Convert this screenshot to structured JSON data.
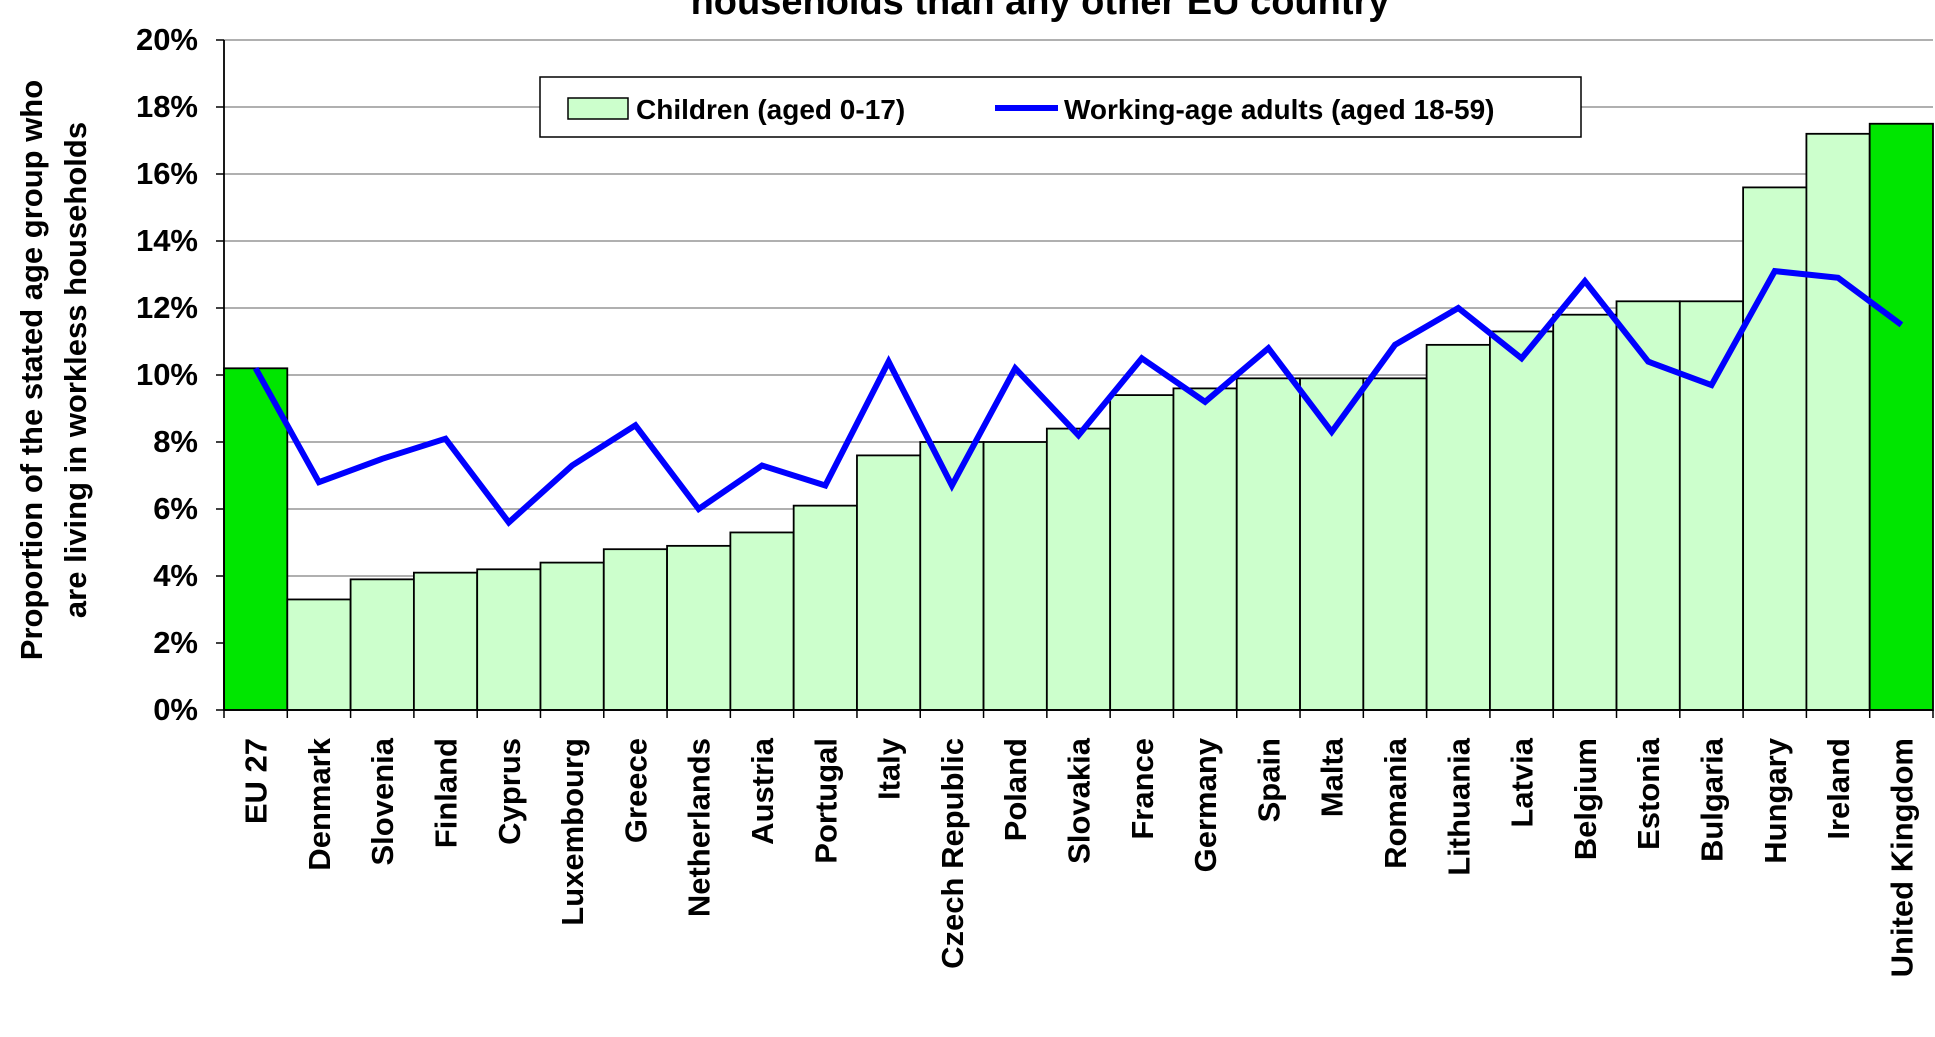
{
  "chart_data": {
    "type": "bar",
    "title": "households than any other EU country",
    "ylabel_lines": [
      "Proportion of the stated age group who",
      "are living in workless households"
    ],
    "xlabel": "",
    "ylim": [
      0,
      20
    ],
    "yticks": [
      "0%",
      "2%",
      "4%",
      "6%",
      "8%",
      "10%",
      "12%",
      "14%",
      "16%",
      "18%",
      "20%"
    ],
    "grid": true,
    "legend_position": "top-center",
    "categories": [
      "EU 27",
      "Denmark",
      "Slovenia",
      "Finland",
      "Cyprus",
      "Luxembourg",
      "Greece",
      "Netherlands",
      "Austria",
      "Portugal",
      "Italy",
      "Czech Republic",
      "Poland",
      "Slovakia",
      "France",
      "Germany",
      "Spain",
      "Malta",
      "Romania",
      "Lithuania",
      "Latvia",
      "Belgium",
      "Estonia",
      "Bulgaria",
      "Hungary",
      "Ireland",
      "United Kingdom"
    ],
    "highlighted_categories": [
      "EU 27",
      "United Kingdom"
    ],
    "series": [
      {
        "name": "Children (aged 0-17)",
        "type": "bar",
        "color": "#ccffcc",
        "highlight_color": "#00e600",
        "values": [
          10.2,
          3.3,
          3.9,
          4.1,
          4.2,
          4.4,
          4.8,
          4.9,
          5.3,
          6.1,
          7.6,
          8.0,
          8.0,
          8.4,
          9.4,
          9.6,
          9.9,
          9.9,
          9.9,
          10.9,
          11.3,
          11.8,
          12.2,
          12.2,
          15.6,
          17.2,
          17.5
        ]
      },
      {
        "name": "Working-age adults (aged 18-59)",
        "type": "line",
        "color": "#0000ff",
        "values": [
          10.2,
          6.8,
          7.5,
          8.1,
          5.6,
          7.3,
          8.5,
          6.0,
          7.3,
          6.7,
          10.4,
          6.7,
          10.2,
          8.2,
          10.5,
          9.2,
          10.8,
          8.3,
          10.9,
          12.0,
          10.5,
          12.8,
          10.4,
          9.7,
          13.1,
          12.9,
          11.5
        ]
      }
    ]
  }
}
